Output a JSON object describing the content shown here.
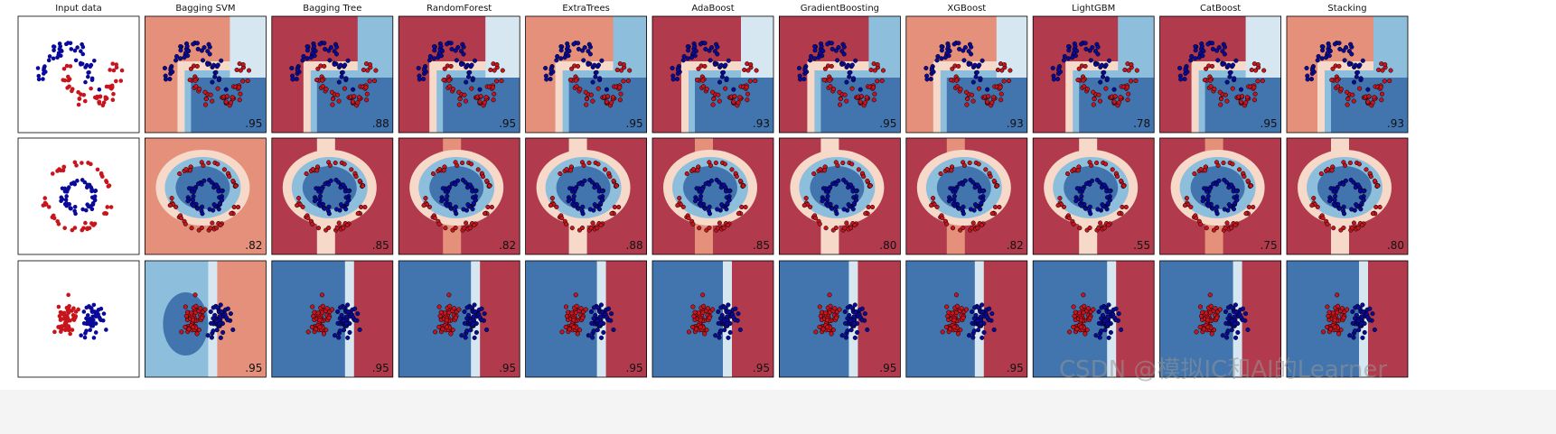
{
  "columns": [
    "Input data",
    "Bagging SVM",
    "Bagging Tree",
    "RandomForest",
    "ExtraTrees",
    "AdaBoost",
    "GradientBoosting",
    "XGBoost",
    "LightGBM",
    "CatBoost",
    "Stacking"
  ],
  "scores": [
    [
      ".95",
      ".88",
      ".95",
      ".95",
      ".93",
      ".95",
      ".93",
      ".78",
      ".95",
      ".93"
    ],
    [
      ".82",
      ".85",
      ".82",
      ".88",
      ".85",
      ".80",
      ".82",
      ".55",
      ".75",
      ".80"
    ],
    [
      ".95",
      ".95",
      ".95",
      ".95",
      ".95",
      ".95",
      ".95"
    ]
  ],
  "watermark": "CSDN @模拟IC和AI的Learner"
}
